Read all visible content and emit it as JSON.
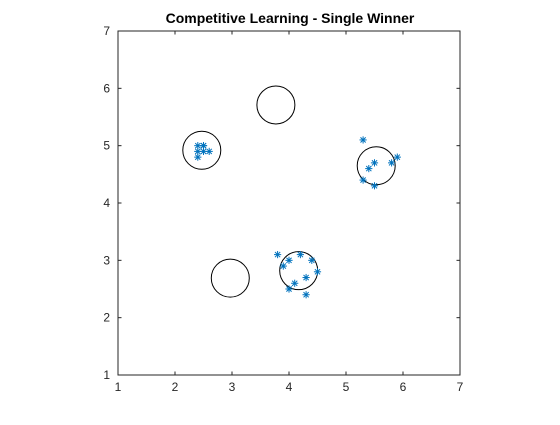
{
  "chart_data": {
    "type": "scatter",
    "title": "Competitive Learning - Single Winner",
    "xlabel": "",
    "ylabel": "",
    "xlim": [
      1,
      7
    ],
    "ylim": [
      1,
      7
    ],
    "xticks": [
      1,
      2,
      3,
      4,
      5,
      6,
      7
    ],
    "yticks": [
      1,
      2,
      3,
      4,
      5,
      6,
      7
    ],
    "grid": false,
    "box": true,
    "series": [
      {
        "marker": "asterisk",
        "color": "#0072bd",
        "points": [
          [
            2.4,
            5.0
          ],
          [
            2.5,
            5.0
          ],
          [
            2.4,
            4.9
          ],
          [
            2.5,
            4.9
          ],
          [
            2.6,
            4.9
          ],
          [
            2.4,
            4.8
          ],
          [
            2.5,
            5.0
          ],
          [
            5.3,
            5.1
          ],
          [
            5.4,
            4.6
          ],
          [
            5.5,
            4.7
          ],
          [
            5.8,
            4.7
          ],
          [
            5.9,
            4.8
          ],
          [
            5.3,
            4.4
          ],
          [
            5.5,
            4.3
          ],
          [
            3.8,
            3.1
          ],
          [
            3.9,
            2.9
          ],
          [
            4.0,
            3.0
          ],
          [
            4.2,
            3.1
          ],
          [
            4.4,
            3.0
          ],
          [
            4.5,
            2.8
          ],
          [
            4.3,
            2.7
          ],
          [
            4.1,
            2.6
          ],
          [
            4.0,
            2.5
          ],
          [
            4.3,
            2.4
          ]
        ]
      }
    ],
    "neurons": {
      "marker": "circle",
      "color": "#000000",
      "centers": [
        [
          2.47,
          4.92
        ],
        [
          3.77,
          5.71
        ],
        [
          5.53,
          4.65
        ],
        [
          4.17,
          2.82
        ],
        [
          2.97,
          2.69
        ]
      ]
    }
  }
}
